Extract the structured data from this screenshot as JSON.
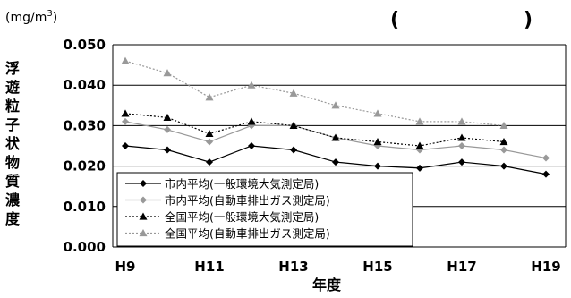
{
  "chart_data": {
    "type": "line",
    "unit_label": "(mg/m",
    "unit_superscript": "3",
    "unit_close": ")",
    "title_open_paren": "(",
    "title_close_paren": ")",
    "ylabel_chars": [
      "浮",
      "遊",
      "粒",
      "子",
      "状",
      "物",
      "質",
      "濃",
      "度"
    ],
    "xlabel": "年度",
    "ylim": [
      0,
      0.05
    ],
    "yticks": [
      "0.000",
      "0.010",
      "0.020",
      "0.030",
      "0.040",
      "0.050"
    ],
    "x": [
      "H9",
      "H10",
      "H11",
      "H12",
      "H13",
      "H14",
      "H15",
      "H16",
      "H17",
      "H18",
      "H19"
    ],
    "xtick_labels": [
      "H9",
      "",
      "H11",
      "",
      "H13",
      "",
      "H15",
      "",
      "H17",
      "",
      "H19"
    ],
    "grid": true,
    "legend_position": "bottom-left",
    "series": [
      {
        "name": "市内平均(一般環境大気測定局)",
        "color": "#000000",
        "marker": "diamond",
        "dash": "solid",
        "values": [
          0.025,
          0.024,
          0.021,
          0.025,
          0.024,
          0.021,
          0.02,
          0.0195,
          0.021,
          0.02,
          0.018
        ]
      },
      {
        "name": "市内平均(自動車排出ガス測定局)",
        "color": "#999999",
        "marker": "diamond",
        "dash": "solid",
        "values": [
          0.031,
          0.029,
          0.026,
          0.03,
          0.03,
          0.027,
          0.025,
          0.024,
          0.025,
          0.024,
          0.022
        ]
      },
      {
        "name": "全国平均(一般環境大気測定局)",
        "color": "#000000",
        "marker": "triangle",
        "dash": "dotted",
        "values": [
          0.033,
          0.032,
          0.028,
          0.031,
          0.03,
          0.027,
          0.026,
          0.025,
          0.027,
          0.026,
          null
        ]
      },
      {
        "name": "全国平均(自動車排出ガス測定局)",
        "color": "#999999",
        "marker": "triangle",
        "dash": "dotted",
        "values": [
          0.046,
          0.043,
          0.037,
          0.04,
          0.038,
          0.035,
          0.033,
          0.031,
          0.031,
          0.03,
          null
        ]
      }
    ]
  }
}
